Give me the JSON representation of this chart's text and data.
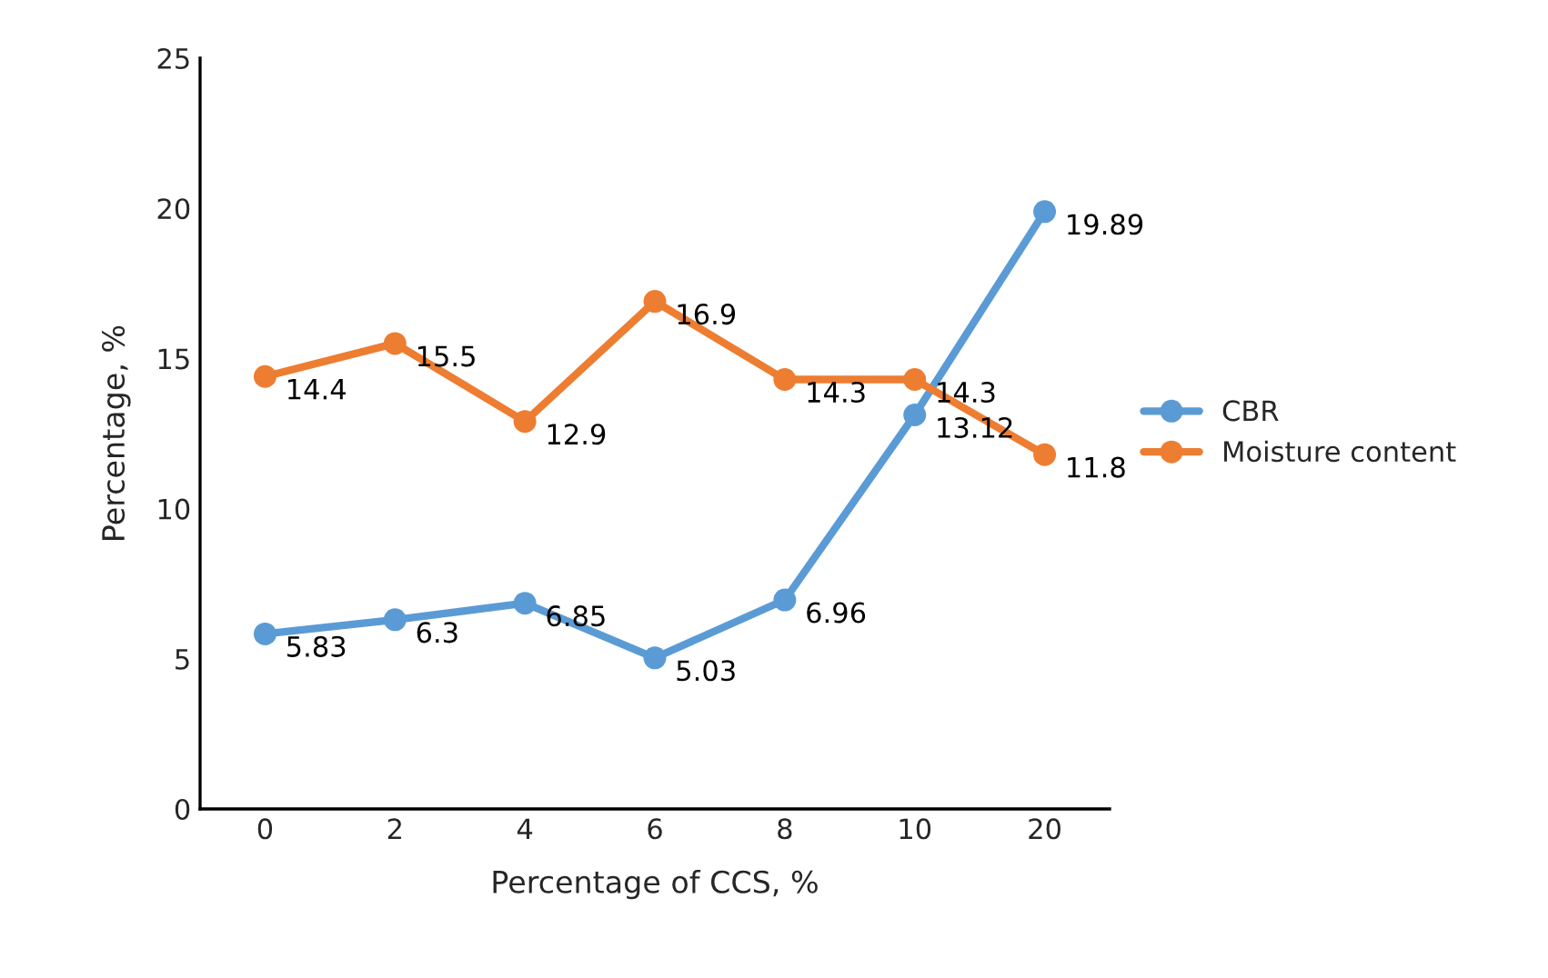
{
  "chart_data": {
    "type": "line",
    "xlabel": "Percentage of CCS, %",
    "ylabel": "Percentage, %",
    "categories": [
      "0",
      "2",
      "4",
      "6",
      "8",
      "10",
      "20"
    ],
    "series": [
      {
        "name": "CBR",
        "color": "#5b9bd5",
        "values": [
          5.83,
          6.3,
          6.85,
          5.03,
          6.96,
          13.12,
          19.89
        ]
      },
      {
        "name": "Moisture content",
        "color": "#ed7d31",
        "values": [
          14.4,
          15.5,
          12.9,
          16.9,
          14.3,
          14.3,
          11.8
        ]
      }
    ],
    "ylim": [
      0,
      25
    ],
    "yticks": [
      0,
      5,
      10,
      15,
      20,
      25
    ],
    "grid": false,
    "legend": "right",
    "marker": "circle",
    "line_style": "solid",
    "data_labels": true
  }
}
